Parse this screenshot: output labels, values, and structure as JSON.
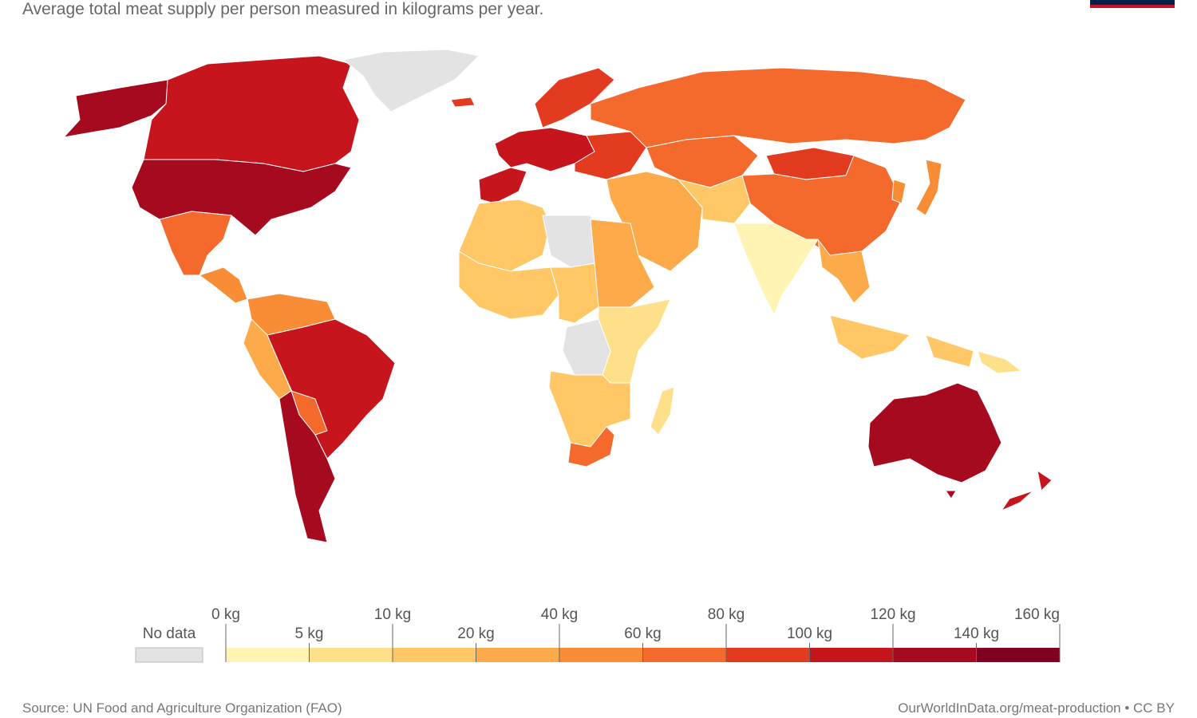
{
  "subtitle": "Average total meat supply per person measured in kilograms per year.",
  "source": "Source: UN Food and Agriculture Organization (FAO)",
  "credit": "OurWorldInData.org/meat-production • CC BY",
  "colors": {
    "no_data": "#e3e3e3",
    "bins": [
      "#fff4b3",
      "#ffe08a",
      "#ffc766",
      "#fcaa4a",
      "#f98d36",
      "#f46a2c",
      "#e33b1f",
      "#c7151d",
      "#a60a1f",
      "#7f0020"
    ],
    "border": "#ffffff",
    "brand_top": "#002147",
    "brand_bottom": "#c8102e"
  },
  "legend": {
    "no_data_label": "No data",
    "ticks_top": [
      "0 kg",
      "10 kg",
      "40 kg",
      "80 kg",
      "120 kg",
      "160 kg"
    ],
    "ticks_bottom": [
      "5 kg",
      "20 kg",
      "60 kg",
      "100 kg",
      "140 kg"
    ]
  },
  "regions": [
    {
      "name": "Alaska",
      "bin": 8
    },
    {
      "name": "Canada",
      "bin": 7
    },
    {
      "name": "Greenland",
      "bin": -1
    },
    {
      "name": "United States",
      "bin": 8
    },
    {
      "name": "Mexico",
      "bin": 5
    },
    {
      "name": "Central America",
      "bin": 4
    },
    {
      "name": "Colombia / Venezuela",
      "bin": 4
    },
    {
      "name": "Peru / Bolivia",
      "bin": 3
    },
    {
      "name": "Brazil",
      "bin": 7
    },
    {
      "name": "Paraguay",
      "bin": 5
    },
    {
      "name": "Argentina / Chile",
      "bin": 8
    },
    {
      "name": "Iceland / Norway",
      "bin": 6
    },
    {
      "name": "Western Europe",
      "bin": 7
    },
    {
      "name": "Spain",
      "bin": 7
    },
    {
      "name": "Eastern Europe",
      "bin": 6
    },
    {
      "name": "Russia",
      "bin": 5
    },
    {
      "name": "Kazakhstan",
      "bin": 5
    },
    {
      "name": "Mongolia",
      "bin": 6
    },
    {
      "name": "China",
      "bin": 5
    },
    {
      "name": "Japan / Korea",
      "bin": 4
    },
    {
      "name": "Middle East",
      "bin": 3
    },
    {
      "name": "Central Asia",
      "bin": 2
    },
    {
      "name": "India",
      "bin": 0
    },
    {
      "name": "Southeast Asia",
      "bin": 3
    },
    {
      "name": "Indonesia",
      "bin": 2
    },
    {
      "name": "North Africa West",
      "bin": 2
    },
    {
      "name": "Sahara (no data)",
      "bin": -1
    },
    {
      "name": "Egypt / Sudan",
      "bin": 3
    },
    {
      "name": "West Africa",
      "bin": 2
    },
    {
      "name": "Central Africa",
      "bin": 2
    },
    {
      "name": "Congo (no data)",
      "bin": -1
    },
    {
      "name": "East Africa",
      "bin": 1
    },
    {
      "name": "Angola / Zambia",
      "bin": 2
    },
    {
      "name": "South Africa",
      "bin": 5
    },
    {
      "name": "Madagascar",
      "bin": 1
    },
    {
      "name": "Australia",
      "bin": 8
    },
    {
      "name": "New Zealand",
      "bin": 7
    },
    {
      "name": "Papua New Guinea",
      "bin": 1
    }
  ]
}
